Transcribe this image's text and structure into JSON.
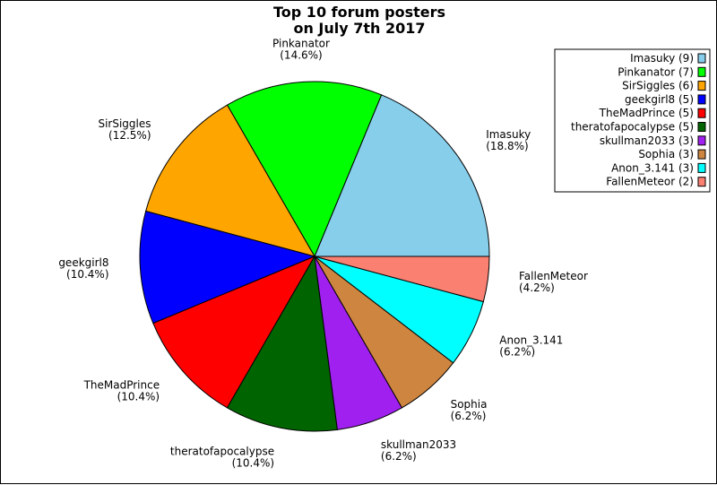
{
  "chart_data": {
    "type": "pie",
    "title": [
      "Top 10 forum posters",
      "on July 7th 2017"
    ],
    "slices": [
      {
        "name": "Imasuky",
        "value": 9,
        "pct": "18.8%",
        "color": "#87ceeb",
        "legend": "Imasuky (9)"
      },
      {
        "name": "Pinkanator",
        "value": 7,
        "pct": "14.6%",
        "color": "#00ff00",
        "legend": "Pinkanator (7)"
      },
      {
        "name": "SirSiggles",
        "value": 6,
        "pct": "12.5%",
        "color": "#ffa500",
        "legend": "SirSiggles (6)"
      },
      {
        "name": "geekgirl8",
        "value": 5,
        "pct": "10.4%",
        "color": "#0000ff",
        "legend": "geekgirl8 (5)"
      },
      {
        "name": "TheMadPrince",
        "value": 5,
        "pct": "10.4%",
        "color": "#ff0000",
        "legend": "TheMadPrince (5)"
      },
      {
        "name": "theratofapocalypse",
        "value": 5,
        "pct": "10.4%",
        "color": "#006400",
        "legend": "theratofapocalypse (5)"
      },
      {
        "name": "skullman2033",
        "value": 3,
        "pct": "6.2%",
        "color": "#a020f0",
        "legend": "skullman2033 (3)"
      },
      {
        "name": "Sophia",
        "value": 3,
        "pct": "6.2%",
        "color": "#cd853f",
        "legend": "Sophia (3)"
      },
      {
        "name": "Anon_3.141",
        "value": 3,
        "pct": "6.2%",
        "color": "#00ffff",
        "legend": "Anon_3.141 (3)"
      },
      {
        "name": "FallenMeteor",
        "value": 2,
        "pct": "4.2%",
        "color": "#fa8072",
        "legend": "FallenMeteor (2)"
      }
    ],
    "legend_position": "top-right",
    "start_angle_deg": 0,
    "direction": "counterclockwise"
  }
}
